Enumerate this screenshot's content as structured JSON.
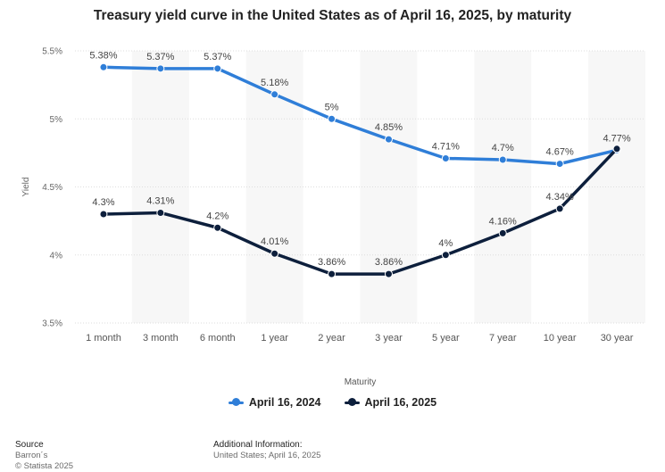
{
  "title": "Treasury yield curve in the United States as of April 16, 2025, by maturity",
  "chart_data": {
    "type": "line",
    "title": "Treasury yield curve in the United States as of April 16, 2025, by maturity",
    "xlabel": "Maturity",
    "ylabel": "Yield",
    "categories": [
      "1 month",
      "3 month",
      "6 month",
      "1 year",
      "2 year",
      "3 year",
      "5 year",
      "7 year",
      "10 year",
      "30 year"
    ],
    "ylim": [
      3.5,
      5.5
    ],
    "yticks": [
      3.5,
      4,
      4.5,
      5,
      5.5
    ],
    "ytick_labels": [
      "3.5%",
      "4%",
      "4.5%",
      "5%",
      "5.5%"
    ],
    "grid": true,
    "legend_position": "bottom",
    "series": [
      {
        "name": "April 16, 2024",
        "color": "#2f7ed8",
        "values": [
          5.38,
          5.37,
          5.37,
          5.18,
          5.0,
          4.85,
          4.71,
          4.7,
          4.67,
          4.77
        ],
        "labels": [
          "5.38%",
          "5.37%",
          "5.37%",
          "5.18%",
          "5%",
          "4.85%",
          "4.71%",
          "4.7%",
          "4.67%",
          "4.77%"
        ]
      },
      {
        "name": "April 16, 2025",
        "color": "#0d1f3c",
        "values": [
          4.3,
          4.31,
          4.2,
          4.01,
          3.86,
          3.86,
          4.0,
          4.16,
          4.34,
          4.78
        ],
        "labels": [
          "4.3%",
          "4.31%",
          "4.2%",
          "4.01%",
          "3.86%",
          "3.86%",
          "4%",
          "4.16%",
          "4.34%",
          ""
        ]
      }
    ]
  },
  "legend": {
    "item1": "April 16, 2024",
    "item2": "April 16, 2025"
  },
  "footer": {
    "source_heading": "Source",
    "source_name": "Barron´s",
    "copyright": "© Statista 2025",
    "additional_heading": "Additional Information:",
    "additional_text": "United States; April 16, 2025"
  }
}
